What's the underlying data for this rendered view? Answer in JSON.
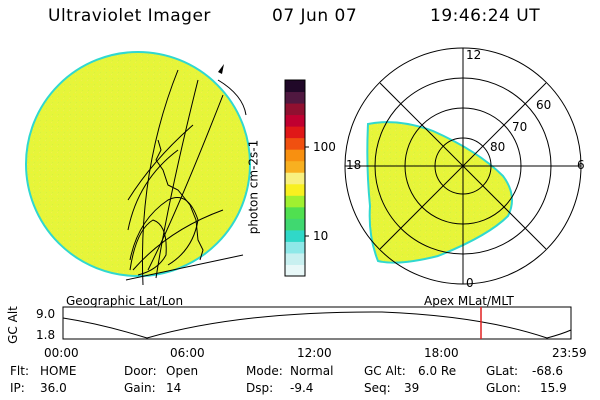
{
  "header": {
    "instrument": "Ultraviolet Imager",
    "date": "07 Jun 07",
    "time": "19:46:24 UT"
  },
  "colorbar": {
    "label": "photon cm-2s-1",
    "ticks": [
      "100",
      "10"
    ],
    "colors": [
      "#e8f8f8",
      "#c8f0f0",
      "#8ee8e8",
      "#30d8c8",
      "#40d870",
      "#50e050",
      "#a0f030",
      "#f8f020",
      "#f8f080",
      "#f8b020",
      "#f89010",
      "#f05010",
      "#e01818",
      "#c00030",
      "#901030",
      "#501840",
      "#200828"
    ]
  },
  "left_panel": {
    "caption": "Geographic Lat/Lon",
    "fill_color": "#e6f53a"
  },
  "right_panel": {
    "caption": "Apex MLat/MLT",
    "mlt_labels": {
      "top": "12",
      "right": "6",
      "left": "18",
      "bottom": "0"
    },
    "lat_labels": [
      "60",
      "70",
      "80"
    ],
    "fill_color": "#e6f53a"
  },
  "altitude_plot": {
    "ylabel": "GC Alt",
    "yticks": [
      "9.0",
      "1.8"
    ],
    "xticks": [
      "00:00",
      "06:00",
      "12:00",
      "18:00",
      "23:59"
    ],
    "marker_color": "#e02020"
  },
  "info": {
    "flt_label": "Flt:",
    "flt_value": "HOME",
    "ip_label": "IP:",
    "ip_value": "36.0",
    "door_label": "Door:",
    "door_value": "Open",
    "gain_label": "Gain:",
    "gain_value": "14",
    "mode_label": "Mode:",
    "mode_value": "Normal",
    "dsp_label": "Dsp:",
    "dsp_value": "-9.4",
    "gcalt_label": "GC Alt:",
    "gcalt_value": "6.0 Re",
    "seq_label": "Seq:",
    "seq_value": "39",
    "glat_label": "GLat:",
    "glat_value": "-68.6",
    "glon_label": "GLon:",
    "glon_value": "15.9"
  }
}
